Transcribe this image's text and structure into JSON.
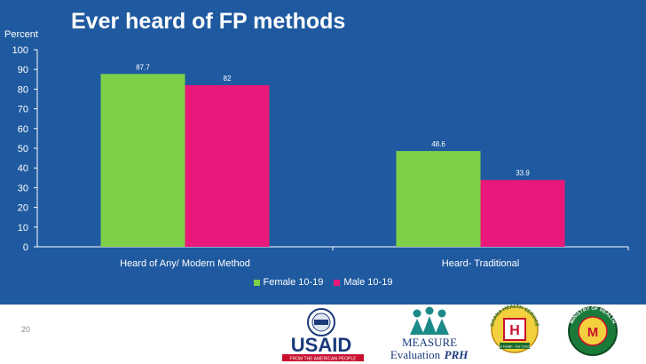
{
  "slide": {
    "title": "Ever heard of FP methods",
    "page_number": "20"
  },
  "chart_data": {
    "type": "bar",
    "title": "Ever heard of FP methods",
    "ylabel": "Percent",
    "xlabel": "",
    "ylim": [
      0,
      100
    ],
    "yticks": [
      "0",
      "10",
      "20",
      "30",
      "40",
      "50",
      "60",
      "70",
      "80",
      "90",
      "100"
    ],
    "categories": [
      "Heard of Any/ Modern Method",
      "Heard- Traditional"
    ],
    "series": [
      {
        "name": "Female 10-19",
        "values": [
          87.7,
          48.6
        ],
        "labels": [
          "87.7",
          "48.6"
        ],
        "color": "#7ed047"
      },
      {
        "name": "Male 10-19",
        "values": [
          82,
          33.9
        ],
        "labels": [
          "82",
          "33.9"
        ],
        "color": "#e8197a"
      }
    ],
    "legend_position": "bottom",
    "grid": false
  },
  "logos": {
    "usaid": {
      "text": "USAID",
      "tagline": "FROM THE AMERICAN PEOPLE"
    },
    "measure": {
      "line1": "MEASURE",
      "line2": "Evaluation",
      "line3": "PRH"
    },
    "ghs": {
      "ring_text": "GHANA HEALTH SERVICE",
      "letter": "H",
      "tagline": "Your Health - Our Concern"
    },
    "ministry": {
      "ring_text": "MINISTRY OF HEALTH",
      "letter": "M"
    }
  }
}
